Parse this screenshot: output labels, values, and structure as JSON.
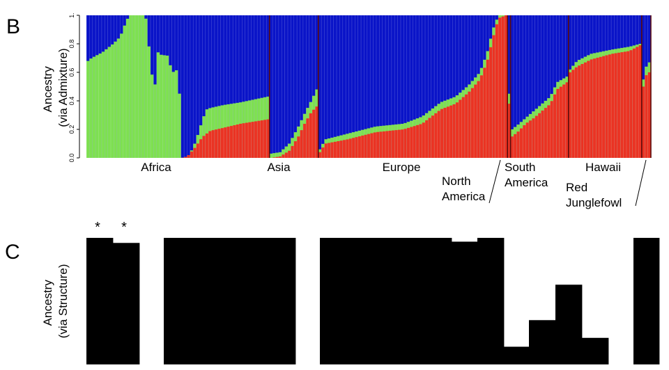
{
  "chart_data": [
    {
      "panel": "B",
      "type": "bar",
      "stacked": true,
      "ylabel_lines": [
        "Ancestry",
        "(via Admixture)"
      ],
      "ylim": [
        0,
        1
      ],
      "yticks": [
        "0.0",
        "0.2",
        "0.4",
        "0.6",
        "0.8",
        "1."
      ],
      "colors": {
        "red": "#ea3323",
        "green": "#7ee051",
        "blue": "#0a14c8"
      },
      "group_labels": [
        {
          "id": "africa",
          "lines": [
            "Africa"
          ]
        },
        {
          "id": "asia",
          "lines": [
            "Asia"
          ]
        },
        {
          "id": "europe",
          "lines": [
            "Europe"
          ]
        },
        {
          "id": "north-america",
          "lines": [
            "North",
            "America"
          ]
        },
        {
          "id": "south-america",
          "lines": [
            "South",
            "America"
          ]
        },
        {
          "id": "hawaii",
          "lines": [
            "Hawaii"
          ]
        },
        {
          "id": "red-junglefowl",
          "lines": [
            "Red",
            "Junglefowl"
          ]
        }
      ],
      "groups": [
        {
          "id": "africa",
          "n": 60,
          "profile": [
            [
              0,
              0,
              0.68
            ],
            [
              2,
              0,
              0.7
            ],
            [
              8,
              0,
              0.74
            ],
            [
              14,
              0,
              0.8
            ],
            [
              18,
              0,
              0.85
            ],
            [
              21,
              0,
              0.95
            ],
            [
              23,
              0,
              1.0
            ],
            [
              32,
              0,
              1.0
            ],
            [
              34,
              0,
              0.77
            ],
            [
              37,
              0,
              0.42
            ],
            [
              38,
              0,
              0.75
            ],
            [
              41,
              0,
              0.72
            ],
            [
              44,
              0,
              0.72
            ],
            [
              47,
              0,
              0.6
            ],
            [
              50,
              0,
              0.62
            ],
            [
              51,
              0,
              0.42
            ],
            [
              52,
              0.0,
              0.0
            ],
            [
              54,
              0.005,
              0.005
            ],
            [
              56,
              0.02,
              0.02
            ],
            [
              58,
              0.05,
              0.06
            ],
            [
              60,
              0.08,
              0.12
            ],
            [
              62,
              0.12,
              0.2
            ],
            [
              64,
              0.15,
              0.28
            ],
            [
              66,
              0.17,
              0.34
            ],
            [
              68,
              0.19,
              0.35
            ],
            [
              75,
              0.21,
              0.37
            ],
            [
              85,
              0.24,
              0.39
            ],
            [
              100,
              0.27,
              0.43
            ]
          ]
        },
        {
          "id": "asia",
          "n": 16,
          "profile": [
            [
              0,
              0.0,
              0.03
            ],
            [
              20,
              0.01,
              0.04
            ],
            [
              40,
              0.05,
              0.1
            ],
            [
              60,
              0.15,
              0.22
            ],
            [
              75,
              0.25,
              0.32
            ],
            [
              88,
              0.32,
              0.4
            ],
            [
              100,
              0.36,
              0.48
            ]
          ]
        },
        {
          "id": "europe",
          "n": 62,
          "profile": [
            [
              0,
              0.04,
              0.06
            ],
            [
              3,
              0.1,
              0.13
            ],
            [
              15,
              0.13,
              0.17
            ],
            [
              30,
              0.18,
              0.22
            ],
            [
              45,
              0.2,
              0.24
            ],
            [
              55,
              0.24,
              0.29
            ],
            [
              65,
              0.34,
              0.39
            ],
            [
              73,
              0.38,
              0.43
            ],
            [
              80,
              0.46,
              0.51
            ],
            [
              86,
              0.55,
              0.6
            ],
            [
              90,
              0.68,
              0.74
            ],
            [
              93,
              0.84,
              0.9
            ],
            [
              96,
              0.98,
              1.0
            ],
            [
              100,
              1.0,
              1.0
            ]
          ]
        },
        {
          "id": "north-america",
          "n": 1,
          "profile": [
            [
              0,
              0.38,
              0.45
            ],
            [
              100,
              0.38,
              0.45
            ]
          ]
        },
        {
          "id": "south-america",
          "n": 19,
          "profile": [
            [
              0,
              0.15,
              0.2
            ],
            [
              10,
              0.18,
              0.23
            ],
            [
              25,
              0.24,
              0.28
            ],
            [
              40,
              0.28,
              0.33
            ],
            [
              55,
              0.33,
              0.38
            ],
            [
              70,
              0.38,
              0.43
            ],
            [
              82,
              0.48,
              0.53
            ],
            [
              100,
              0.53,
              0.57
            ]
          ]
        },
        {
          "id": "hawaii",
          "n": 24,
          "profile": [
            [
              0,
              0.6,
              0.62
            ],
            [
              10,
              0.64,
              0.68
            ],
            [
              30,
              0.69,
              0.73
            ],
            [
              60,
              0.73,
              0.76
            ],
            [
              85,
              0.75,
              0.78
            ],
            [
              100,
              0.79,
              0.8
            ]
          ]
        },
        {
          "id": "red-junglefowl",
          "n": 3,
          "profile": [
            [
              0,
              0.5,
              0.55
            ],
            [
              50,
              0.58,
              0.64
            ],
            [
              100,
              0.6,
              0.67
            ]
          ]
        }
      ]
    },
    {
      "panel": "C",
      "type": "bar",
      "ylabel_lines": [
        "Ancestry",
        "(via Structure)"
      ],
      "ylim": [
        0,
        1
      ],
      "colors": {
        "fill": "#000000",
        "background": "#ffffff"
      },
      "markers": [
        "*",
        "*"
      ],
      "segments": [
        {
          "value": 1.0
        },
        {
          "value": 0.96
        },
        {
          "value": 0.0
        },
        {
          "value": 1.0
        },
        {
          "value": 0.0
        },
        {
          "value": 1.0
        },
        {
          "value": 0.97
        },
        {
          "value": 1.0
        },
        {
          "value": 0.14
        },
        {
          "value": 0.35
        },
        {
          "value": 0.63
        },
        {
          "value": 0.21
        },
        {
          "value": 0.0
        },
        {
          "value": 1.0
        }
      ]
    }
  ],
  "panel_letters": {
    "b": "B",
    "c": "C"
  }
}
